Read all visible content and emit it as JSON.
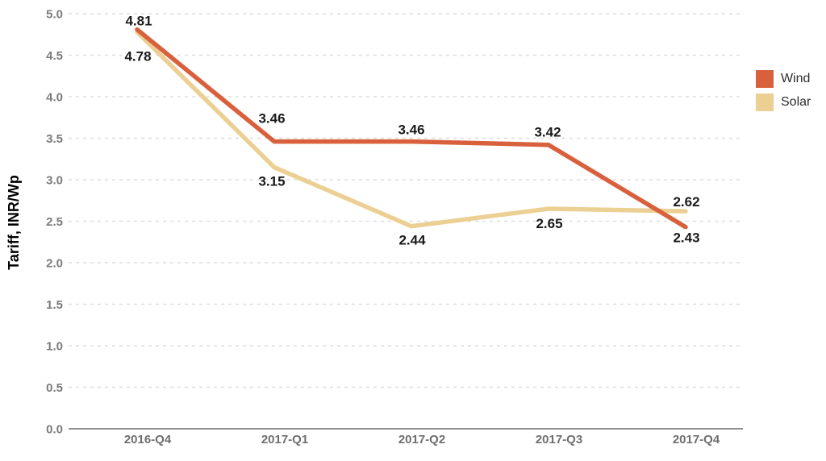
{
  "chart_data": {
    "type": "line",
    "title": "",
    "xlabel": "",
    "ylabel": "Tariff, INR/Wp",
    "categories": [
      "2016-Q4",
      "2017-Q1",
      "2017-Q2",
      "2017-Q3",
      "2017-Q4"
    ],
    "series": [
      {
        "name": "Wind",
        "color": "#D8603C",
        "values": [
          4.81,
          3.46,
          3.46,
          3.42,
          2.43
        ],
        "point_labels": [
          "4.81",
          "3.46",
          "3.46",
          "3.42",
          "2.43"
        ]
      },
      {
        "name": "Solar",
        "color": "#ECCF93",
        "values": [
          4.78,
          3.15,
          2.44,
          2.65,
          2.62
        ],
        "point_labels": [
          "4.78",
          "3.15",
          "2.44",
          "2.65",
          "2.62"
        ]
      }
    ],
    "ylim": [
      0.0,
      5.0
    ],
    "ytick_step": 0.5,
    "ytick_labels": [
      "0.0",
      "0.5",
      "1.0",
      "1.5",
      "2.0",
      "2.5",
      "3.0",
      "3.5",
      "4.0",
      "4.5",
      "5.0"
    ],
    "grid": "horizontal-dashed",
    "legend_position": "right",
    "colors": {
      "gridline": "#DEDEDE",
      "axis_line": "#8F8F8F",
      "y_tick_text": "#7B7B7B",
      "x_tick_text": "#6E6E6E",
      "data_label_text": "#1A1A1A",
      "axis_title_text": "#000000"
    }
  }
}
